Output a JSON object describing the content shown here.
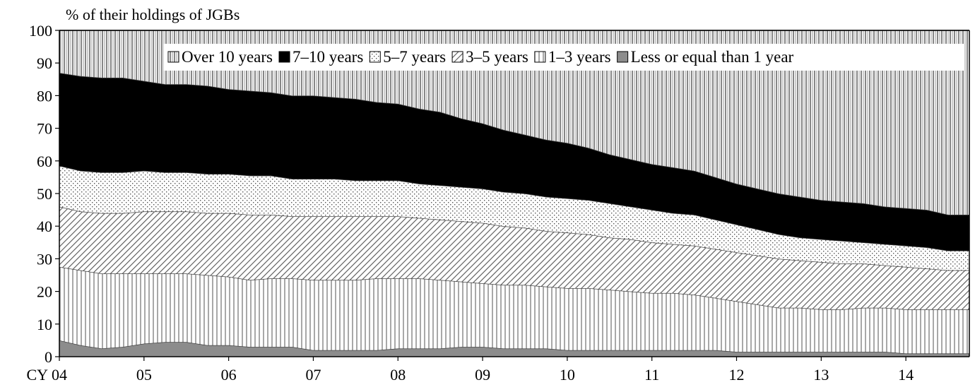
{
  "chart_data": {
    "type": "area",
    "stacked": true,
    "ylabel": "% of their holdings of JGBs",
    "xlabel": "",
    "ylim": [
      0,
      100
    ],
    "yticks": [
      0,
      10,
      20,
      30,
      40,
      50,
      60,
      70,
      80,
      90,
      100
    ],
    "x_prefix": "CY",
    "x_tick_labels": [
      "04",
      "05",
      "06",
      "07",
      "08",
      "09",
      "10",
      "11",
      "12",
      "13",
      "14"
    ],
    "x_tick_years": [
      2004,
      2005,
      2006,
      2007,
      2008,
      2009,
      2010,
      2011,
      2012,
      2013,
      2014
    ],
    "x_range": [
      2004.0,
      2014.75
    ],
    "legend_placement": "top-right",
    "grid": false,
    "x": [
      2004.0,
      2004.25,
      2004.5,
      2004.75,
      2005.0,
      2005.25,
      2005.5,
      2005.75,
      2006.0,
      2006.25,
      2006.5,
      2006.75,
      2007.0,
      2007.25,
      2007.5,
      2007.75,
      2008.0,
      2008.25,
      2008.5,
      2008.75,
      2009.0,
      2009.25,
      2009.5,
      2009.75,
      2010.0,
      2010.25,
      2010.5,
      2010.75,
      2011.0,
      2011.25,
      2011.5,
      2011.75,
      2012.0,
      2012.25,
      2012.5,
      2012.75,
      2013.0,
      2013.25,
      2013.5,
      2013.75,
      2014.0,
      2014.25,
      2014.5,
      2014.75
    ],
    "series": [
      {
        "name": "Less or equal than 1 year",
        "key": "le1",
        "fill": "#8c8c8c",
        "values": [
          5.0,
          3.5,
          2.5,
          3.0,
          4.0,
          4.5,
          4.5,
          3.5,
          3.5,
          3.0,
          3.0,
          3.0,
          2.0,
          2.0,
          2.0,
          2.0,
          2.5,
          2.5,
          2.5,
          3.0,
          3.0,
          2.5,
          2.5,
          2.5,
          2.0,
          2.0,
          2.0,
          2.0,
          2.0,
          2.0,
          2.0,
          2.0,
          1.5,
          1.5,
          1.5,
          1.5,
          1.5,
          1.5,
          1.5,
          1.5,
          1.0,
          1.0,
          1.0,
          1.0
        ]
      },
      {
        "name": "1–3 years",
        "key": "y1_3",
        "fill": "vertical-lines",
        "values": [
          22.5,
          23.0,
          23.0,
          22.5,
          21.5,
          21.0,
          21.0,
          21.5,
          21.0,
          20.5,
          21.0,
          21.0,
          21.5,
          21.5,
          21.5,
          22.0,
          21.5,
          21.5,
          21.0,
          20.0,
          19.5,
          19.5,
          19.5,
          19.0,
          19.0,
          19.0,
          18.5,
          18.0,
          17.5,
          17.5,
          17.0,
          16.0,
          15.5,
          14.5,
          13.5,
          13.5,
          13.0,
          13.0,
          13.5,
          13.5,
          13.5,
          13.5,
          13.5,
          13.5
        ]
      },
      {
        "name": "3–5 years",
        "key": "y3_5",
        "fill": "diagonal",
        "values": [
          18.5,
          18.0,
          18.5,
          18.5,
          19.0,
          19.0,
          19.0,
          19.0,
          19.5,
          20.0,
          19.5,
          19.0,
          19.5,
          19.5,
          19.5,
          19.0,
          19.0,
          18.5,
          18.5,
          18.5,
          18.5,
          18.0,
          17.5,
          17.0,
          17.0,
          16.5,
          16.0,
          16.0,
          15.5,
          15.0,
          15.0,
          15.0,
          15.0,
          15.0,
          15.0,
          14.5,
          14.5,
          14.0,
          13.5,
          13.0,
          13.0,
          12.5,
          12.0,
          12.0
        ]
      },
      {
        "name": "5–7 years",
        "key": "y5_7",
        "fill": "dots",
        "values": [
          12.5,
          12.5,
          12.5,
          12.5,
          12.5,
          12.0,
          12.0,
          12.0,
          12.0,
          12.0,
          12.0,
          11.5,
          11.5,
          11.5,
          11.0,
          11.0,
          11.0,
          10.5,
          10.5,
          10.5,
          10.5,
          10.5,
          10.5,
          10.5,
          10.5,
          10.5,
          10.5,
          10.0,
          10.0,
          9.5,
          9.5,
          9.0,
          8.5,
          8.0,
          7.5,
          7.0,
          7.0,
          7.0,
          6.5,
          6.5,
          6.5,
          6.5,
          6.0,
          6.0
        ]
      },
      {
        "name": "7–10 years",
        "key": "y7_10",
        "fill": "#000000",
        "values": [
          28.5,
          29.0,
          29.0,
          29.0,
          27.5,
          27.0,
          27.0,
          27.0,
          26.0,
          26.0,
          25.5,
          25.5,
          25.5,
          25.0,
          25.0,
          24.0,
          23.5,
          23.0,
          22.5,
          21.0,
          20.0,
          19.0,
          18.0,
          17.5,
          17.0,
          16.0,
          15.0,
          14.5,
          14.0,
          14.0,
          13.5,
          13.0,
          12.5,
          12.5,
          12.5,
          12.5,
          12.0,
          12.0,
          12.0,
          11.5,
          11.5,
          11.5,
          11.0,
          11.0
        ]
      },
      {
        "name": "Over 10 years",
        "key": "over10",
        "fill": "vertical-hatch-dense",
        "values": [
          13.0,
          14.0,
          14.5,
          14.5,
          15.5,
          16.5,
          16.5,
          17.0,
          18.0,
          18.5,
          19.0,
          20.0,
          20.0,
          20.5,
          21.0,
          22.0,
          22.5,
          24.0,
          25.0,
          27.0,
          28.5,
          30.5,
          32.0,
          33.5,
          34.5,
          36.0,
          38.0,
          39.5,
          41.0,
          42.0,
          43.0,
          45.0,
          47.0,
          48.5,
          50.0,
          51.0,
          52.0,
          52.5,
          53.0,
          54.0,
          54.5,
          55.0,
          56.5,
          56.5
        ]
      }
    ]
  },
  "legend": {
    "items": [
      {
        "label": "Over 10 years",
        "key": "over10"
      },
      {
        "label": "7–10 years",
        "key": "y7_10"
      },
      {
        "label": "5–7 years",
        "key": "y5_7"
      },
      {
        "label": "3–5 years",
        "key": "y3_5"
      },
      {
        "label": "1–3 years",
        "key": "y1_3"
      },
      {
        "label": "Less or equal than 1 year",
        "key": "le1"
      }
    ]
  }
}
